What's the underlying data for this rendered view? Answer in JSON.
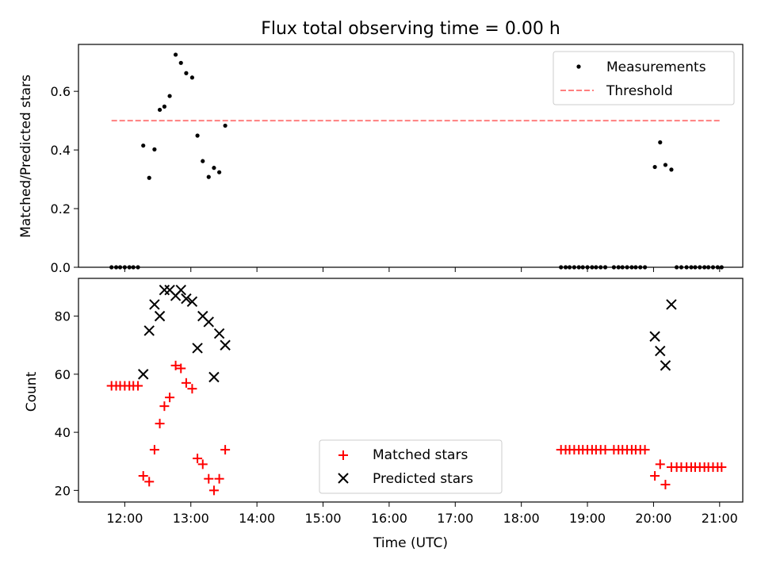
{
  "chart_data": {
    "title": "Flux total observing time = 0.00 h",
    "x_axis": {
      "label": "Time (UTC)",
      "unit": "hours UTC",
      "range": [
        11.3,
        21.35
      ],
      "ticks": [
        12,
        13,
        14,
        15,
        16,
        17,
        18,
        19,
        20,
        21
      ],
      "tick_labels": [
        "12:00",
        "13:00",
        "14:00",
        "15:00",
        "16:00",
        "17:00",
        "18:00",
        "19:00",
        "20:00",
        "21:00"
      ]
    },
    "panels": [
      {
        "type": "scatter",
        "ylabel": "Matched/Predicted stars",
        "ylim": [
          0,
          0.76
        ],
        "yticks": [
          0.0,
          0.2,
          0.4,
          0.6
        ],
        "ytick_labels": [
          "0.0",
          "0.2",
          "0.4",
          "0.6"
        ],
        "legend_position": "top-right",
        "series": [
          {
            "name": "Measurements",
            "kind": "scatter",
            "color": "#000000",
            "marker": "dot",
            "x": [
              11.8,
              11.87,
              11.93,
              12.0,
              12.07,
              12.13,
              12.2,
              12.28,
              12.37,
              12.45,
              12.53,
              12.6,
              12.68,
              12.77,
              12.85,
              12.93,
              13.02,
              13.1,
              13.18,
              13.27,
              13.35,
              13.43,
              13.52,
              18.6,
              18.67,
              18.73,
              18.8,
              18.87,
              18.93,
              19.0,
              19.07,
              19.13,
              19.2,
              19.27,
              19.4,
              19.47,
              19.53,
              19.6,
              19.67,
              19.73,
              19.8,
              19.87,
              20.02,
              20.1,
              20.18,
              20.27,
              20.35,
              20.42,
              20.5,
              20.57,
              20.63,
              20.7,
              20.77,
              20.83,
              20.9,
              20.97,
              21.03
            ],
            "y": [
              0.0,
              0.0,
              0.0,
              0.0,
              0.0,
              0.0,
              0.0,
              0.415,
              0.305,
              0.402,
              0.537,
              0.548,
              0.584,
              0.725,
              0.697,
              0.662,
              0.647,
              0.449,
              0.362,
              0.308,
              0.339,
              0.324,
              0.483,
              0.0,
              0.0,
              0.0,
              0.0,
              0.0,
              0.0,
              0.0,
              0.0,
              0.0,
              0.0,
              0.0,
              0.0,
              0.0,
              0.0,
              0.0,
              0.0,
              0.0,
              0.0,
              0.0,
              0.342,
              0.426,
              0.349,
              0.333,
              0.0,
              0.0,
              0.0,
              0.0,
              0.0,
              0.0,
              0.0,
              0.0,
              0.0,
              0.0,
              0.0
            ]
          },
          {
            "name": "Threshold",
            "kind": "line",
            "style": "dashed",
            "color": "#ff7f7f",
            "x": [
              11.8,
              21.0
            ],
            "y": [
              0.5,
              0.5
            ]
          }
        ]
      },
      {
        "type": "scatter",
        "ylabel": "Count",
        "ylim": [
          16,
          93
        ],
        "yticks": [
          20,
          40,
          60,
          80
        ],
        "ytick_labels": [
          "20",
          "40",
          "60",
          "80"
        ],
        "legend_position": "lower-center",
        "series": [
          {
            "name": "Matched stars",
            "kind": "scatter",
            "color": "#ff0000",
            "marker": "plus",
            "x": [
              11.8,
              11.87,
              11.93,
              12.0,
              12.07,
              12.13,
              12.2,
              12.28,
              12.37,
              12.45,
              12.53,
              12.6,
              12.68,
              12.77,
              12.85,
              12.93,
              13.02,
              13.1,
              13.18,
              13.27,
              13.35,
              13.43,
              13.52,
              18.6,
              18.67,
              18.73,
              18.8,
              18.87,
              18.93,
              19.0,
              19.07,
              19.13,
              19.2,
              19.27,
              19.4,
              19.47,
              19.53,
              19.6,
              19.67,
              19.73,
              19.8,
              19.87,
              20.02,
              20.1,
              20.18,
              20.27,
              20.35,
              20.42,
              20.5,
              20.57,
              20.63,
              20.7,
              20.77,
              20.83,
              20.9,
              20.97,
              21.03
            ],
            "y": [
              56,
              56,
              56,
              56,
              56,
              56,
              56,
              25,
              23,
              34,
              43,
              49,
              52,
              63,
              62,
              57,
              55,
              31,
              29,
              24,
              20,
              24,
              34,
              34,
              34,
              34,
              34,
              34,
              34,
              34,
              34,
              34,
              34,
              34,
              34,
              34,
              34,
              34,
              34,
              34,
              34,
              34,
              25,
              29,
              22,
              28,
              28,
              28,
              28,
              28,
              28,
              28,
              28,
              28,
              28,
              28,
              28
            ]
          },
          {
            "name": "Predicted stars",
            "kind": "scatter",
            "color": "#000000",
            "marker": "x",
            "x": [
              12.28,
              12.37,
              12.45,
              12.53,
              12.6,
              12.68,
              12.77,
              12.85,
              12.93,
              13.02,
              13.1,
              13.18,
              13.27,
              13.35,
              13.43,
              13.52,
              20.02,
              20.1,
              20.18,
              20.27
            ],
            "y": [
              60,
              75,
              84,
              80,
              89,
              89,
              87,
              89,
              86,
              85,
              69,
              80,
              78,
              59,
              74,
              70,
              73,
              68,
              63,
              84
            ]
          }
        ]
      }
    ]
  }
}
